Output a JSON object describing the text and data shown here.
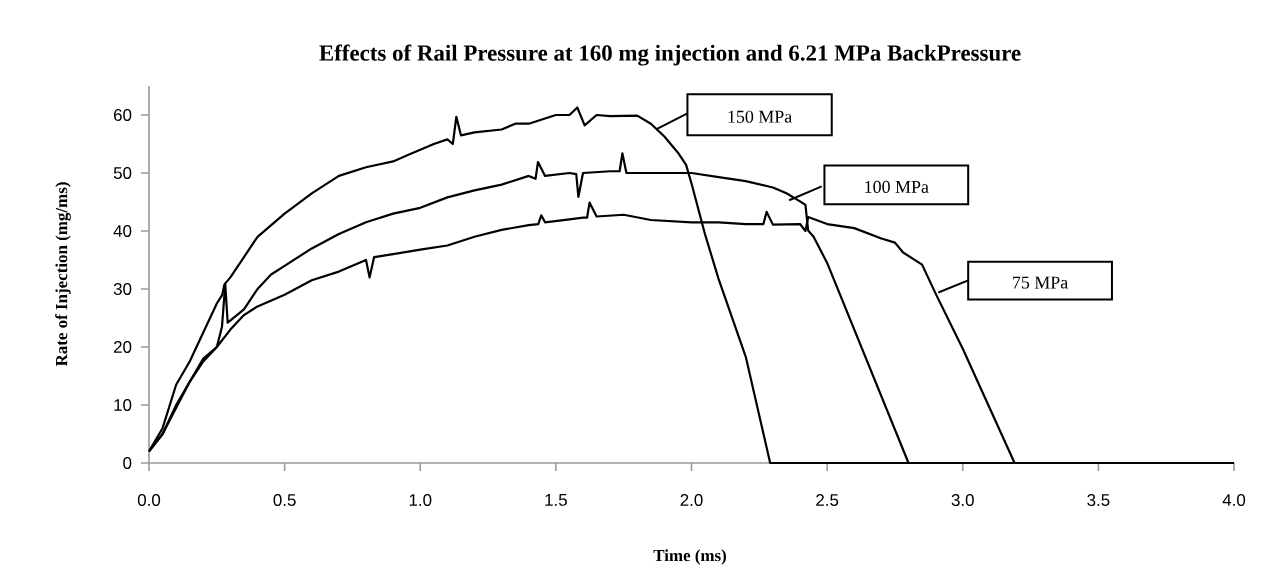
{
  "chart_data": {
    "type": "line",
    "title": "Effects of Rail Pressure at 160 mg injection and 6.21 MPa BackPressure",
    "xlabel": "Time (ms)",
    "ylabel": "Rate of Injection (mg/ms)",
    "xlim": [
      0,
      4
    ],
    "xticks": [
      {
        "value": 0,
        "label": "0.0"
      },
      0.5,
      {
        "value": 1,
        "label": "1.0"
      },
      1.5,
      {
        "value": 2,
        "label": "2.0"
      },
      2.5,
      {
        "value": 3,
        "label": "3.0"
      },
      3.5,
      {
        "value": 4,
        "label": "4.0"
      }
    ],
    "ylim": [
      0,
      65
    ],
    "yticks": [
      0,
      10,
      20,
      30,
      40,
      50,
      60
    ],
    "series": [
      {
        "name": "150 MPa",
        "color": "#000000",
        "x": [
          0,
          0.05,
          0.1,
          0.15,
          0.2,
          0.25,
          0.27,
          0.278,
          0.3,
          0.35,
          0.4,
          0.45,
          0.5,
          0.6,
          0.65,
          0.7,
          0.8,
          0.9,
          0.95,
          1.0,
          1.05,
          1.1,
          1.12,
          1.133,
          1.15,
          1.2,
          1.3,
          1.35,
          1.4,
          1.5,
          1.55,
          1.579,
          1.606,
          1.65,
          1.7,
          1.8,
          1.85,
          1.9,
          1.95,
          1.98,
          2.0,
          2.05,
          2.1,
          2.2,
          2.29,
          3.0,
          4.0
        ],
        "values": [
          2,
          6,
          13.5,
          17.5,
          22.5,
          27.5,
          29,
          30.8,
          32,
          35.5,
          39,
          41,
          43,
          46.5,
          48,
          49.5,
          51,
          52,
          53,
          54,
          55,
          55.8,
          55,
          59.7,
          56.5,
          57,
          57.5,
          58.5,
          58.5,
          60,
          60,
          61.3,
          58.2,
          60,
          59.8,
          59.9,
          58.5,
          56.3,
          53.5,
          51.4,
          48.2,
          39.4,
          31.7,
          18.3,
          0,
          0,
          0
        ]
      },
      {
        "name": "100 MPa",
        "color": "#000000",
        "x": [
          0,
          0.05,
          0.1,
          0.15,
          0.2,
          0.25,
          0.269,
          0.281,
          0.29,
          0.35,
          0.4,
          0.45,
          0.5,
          0.6,
          0.7,
          0.8,
          0.9,
          1.0,
          1.1,
          1.2,
          1.3,
          1.4,
          1.425,
          1.434,
          1.46,
          1.55,
          1.575,
          1.583,
          1.6,
          1.7,
          1.735,
          1.745,
          1.76,
          1.9,
          2.0,
          2.1,
          2.2,
          2.3,
          2.35,
          2.4,
          2.42,
          2.43,
          2.45,
          2.5,
          2.8,
          3.5,
          4.0
        ],
        "values": [
          2,
          5,
          10,
          14,
          18,
          20,
          23.5,
          30.8,
          24.2,
          26.5,
          30,
          32.5,
          34,
          37,
          39.5,
          41.5,
          43,
          44,
          45.8,
          47,
          48,
          49.5,
          49,
          51.9,
          49.5,
          50,
          49.8,
          45.9,
          50,
          50.3,
          50.3,
          53.4,
          50,
          50,
          50,
          49.3,
          48.6,
          47.5,
          46.5,
          45.1,
          44.5,
          40.1,
          39,
          34.5,
          0,
          0,
          0
        ]
      },
      {
        "name": "75 MPa",
        "color": "#000000",
        "x": [
          0,
          0.05,
          0.1,
          0.15,
          0.2,
          0.25,
          0.3,
          0.35,
          0.4,
          0.5,
          0.6,
          0.7,
          0.8,
          0.813,
          0.83,
          0.9,
          1.0,
          1.1,
          1.2,
          1.3,
          1.4,
          1.435,
          1.446,
          1.46,
          1.55,
          1.6,
          1.615,
          1.624,
          1.65,
          1.75,
          1.85,
          2.0,
          2.1,
          2.2,
          2.265,
          2.277,
          2.3,
          2.4,
          2.42,
          2.43,
          2.5,
          2.6,
          2.7,
          2.75,
          2.78,
          2.85,
          2.9,
          3.0,
          3.191,
          4.0
        ],
        "values": [
          2,
          5,
          9.5,
          14,
          17.5,
          20,
          23,
          25.5,
          27,
          29,
          31.5,
          33,
          35,
          32,
          35.5,
          36,
          36.8,
          37.5,
          39,
          40.2,
          41,
          41.2,
          42.7,
          41.5,
          42,
          42.3,
          42.3,
          44.9,
          42.5,
          42.8,
          41.9,
          41.5,
          41.5,
          41.2,
          41.2,
          43.3,
          41.1,
          41.2,
          40,
          42.4,
          41.2,
          40.5,
          38.7,
          38,
          36.3,
          34.2,
          29.2,
          19.7,
          0,
          0
        ]
      }
    ]
  }
}
